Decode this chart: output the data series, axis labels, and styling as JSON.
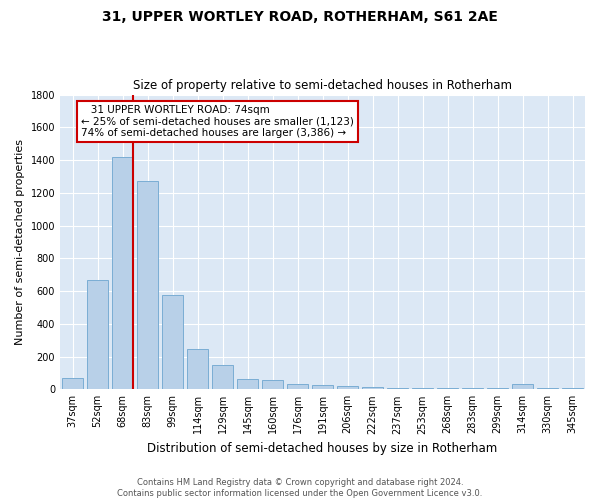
{
  "title": "31, UPPER WORTLEY ROAD, ROTHERHAM, S61 2AE",
  "subtitle": "Size of property relative to semi-detached houses in Rotherham",
  "xlabel": "Distribution of semi-detached houses by size in Rotherham",
  "ylabel": "Number of semi-detached properties",
  "footer_line1": "Contains HM Land Registry data © Crown copyright and database right 2024.",
  "footer_line2": "Contains public sector information licensed under the Open Government Licence v3.0.",
  "annotation_line1": "   31 UPPER WORTLEY ROAD: 74sqm",
  "annotation_line2": "← 25% of semi-detached houses are smaller (1,123)",
  "annotation_line3": "74% of semi-detached houses are larger (3,386) →",
  "categories": [
    "37sqm",
    "52sqm",
    "68sqm",
    "83sqm",
    "99sqm",
    "114sqm",
    "129sqm",
    "145sqm",
    "160sqm",
    "176sqm",
    "191sqm",
    "206sqm",
    "222sqm",
    "237sqm",
    "253sqm",
    "268sqm",
    "283sqm",
    "299sqm",
    "314sqm",
    "330sqm",
    "345sqm"
  ],
  "values": [
    67,
    670,
    1420,
    1270,
    575,
    245,
    150,
    60,
    55,
    35,
    25,
    20,
    15,
    10,
    10,
    10,
    5,
    5,
    35,
    5,
    5
  ],
  "bar_color": "#b8d0e8",
  "bar_edge_color": "#7aadd4",
  "vline_color": "#cc0000",
  "bg_color": "#dce8f5",
  "grid_color": "#ffffff",
  "ylim": [
    0,
    1800
  ],
  "yticks": [
    0,
    200,
    400,
    600,
    800,
    1000,
    1200,
    1400,
    1600,
    1800
  ],
  "vline_idx": 2,
  "title_fontsize": 10,
  "subtitle_fontsize": 8.5,
  "ylabel_fontsize": 8,
  "xlabel_fontsize": 8.5,
  "tick_fontsize": 7,
  "annotation_fontsize": 7.5,
  "footer_fontsize": 6
}
